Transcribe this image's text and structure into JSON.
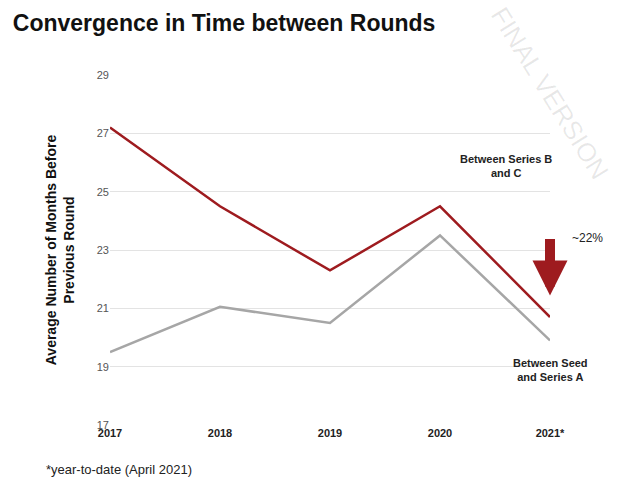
{
  "chart_data": {
    "type": "line",
    "title": "Convergence in Time between Rounds",
    "y_label": "Average Number of Months Before Previous Round",
    "categories": [
      "2017",
      "2018",
      "2019",
      "2020",
      "2021*"
    ],
    "series": [
      {
        "name": "Between Series B and C",
        "color": "#9e1b1f",
        "values": [
          27.2,
          24.5,
          22.3,
          24.5,
          20.7
        ]
      },
      {
        "name": "Between Seed and Series A",
        "color": "#a6a6a6",
        "values": [
          19.5,
          21.05,
          20.5,
          23.5,
          19.9
        ]
      }
    ],
    "ylim": [
      17,
      29
    ],
    "yticks": [
      17,
      19,
      21,
      23,
      25,
      27,
      29
    ],
    "grid": true,
    "annotations": [
      "~22%"
    ],
    "footnote": "*year-to-date (April 2021)",
    "watermark": "FINAL VERSION"
  }
}
